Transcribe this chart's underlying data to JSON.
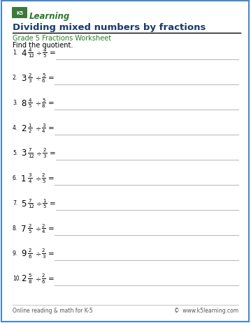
{
  "title": "Dividing mixed numbers by fractions",
  "subtitle": "Grade 5 Fractions Worksheet",
  "instruction": "Find the quotient.",
  "problems": [
    {
      "num": "1.",
      "whole": "4",
      "frac_n": "4",
      "frac_d": "12",
      "div_n": "4",
      "div_d": "5"
    },
    {
      "num": "2.",
      "whole": "3",
      "frac_n": "2",
      "frac_d": "3",
      "div_n": "5",
      "div_d": "6"
    },
    {
      "num": "3.",
      "whole": "8",
      "frac_n": "4",
      "frac_d": "5",
      "div_n": "5",
      "div_d": "8"
    },
    {
      "num": "4.",
      "whole": "2",
      "frac_n": "1",
      "frac_d": "2",
      "div_n": "3",
      "div_d": "4"
    },
    {
      "num": "5.",
      "whole": "3",
      "frac_n": "7",
      "frac_d": "12",
      "div_n": "2",
      "div_d": "3"
    },
    {
      "num": "6.",
      "whole": "1",
      "frac_n": "3",
      "frac_d": "4",
      "div_n": "2",
      "div_d": "5"
    },
    {
      "num": "7.",
      "whole": "5",
      "frac_n": "7",
      "frac_d": "12",
      "div_n": "1",
      "div_d": "5"
    },
    {
      "num": "8.",
      "whole": "7",
      "frac_n": "2",
      "frac_d": "5",
      "div_n": "2",
      "div_d": "4"
    },
    {
      "num": "9.",
      "whole": "9",
      "frac_n": "2",
      "frac_d": "6",
      "div_n": "2",
      "div_d": "3"
    },
    {
      "num": "10.",
      "whole": "2",
      "frac_n": "5",
      "frac_d": "8",
      "div_n": "2",
      "div_d": "6"
    }
  ],
  "footer_left": "Online reading & math for K-5",
  "footer_right": "©  www.k5learning.com",
  "border_color": "#4a86c8",
  "title_color": "#1a3a6b",
  "subtitle_color": "#2a7a2a",
  "bg_color": "#ffffff",
  "line_color": "#bbbbbb",
  "footer_color": "#555555",
  "logo_k5_bg": "#3a7a3a",
  "logo_text_color": "#2a7a2a"
}
